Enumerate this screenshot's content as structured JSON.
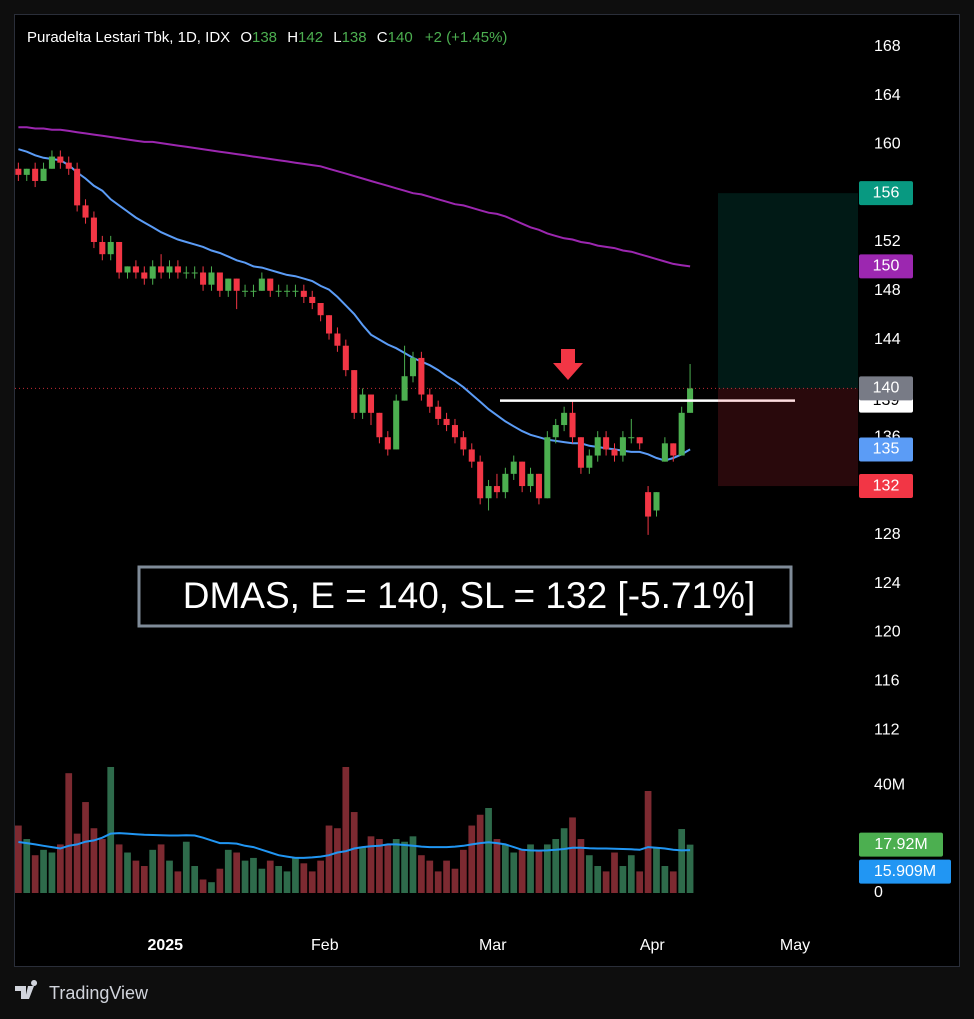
{
  "header": {
    "title": "Puradelta Lestari Tbk, 1D, IDX",
    "o_label": "O",
    "h_label": "H",
    "l_label": "L",
    "c_label": "C",
    "change": "+2 (+1.45%)"
  },
  "chart_data": {
    "type": "candlestick",
    "xlim": [
      -0.4,
      100
    ],
    "xticks": [
      {
        "value": 17.5,
        "label": "2025"
      },
      {
        "value": 36.5,
        "label": "Feb"
      },
      {
        "value": 56.5,
        "label": "Mar"
      },
      {
        "value": 75.5,
        "label": "Apr"
      },
      {
        "value": 92.5,
        "label": "May"
      }
    ],
    "ylim": [
      111.6,
      170.6
    ],
    "yticks": [
      112,
      116,
      120,
      124,
      128,
      132,
      136,
      140,
      144,
      148,
      152,
      156,
      160,
      164,
      168
    ],
    "up_color": "#4caf50",
    "down_color": "#f23645",
    "open": [
      158,
      157.5,
      158,
      157,
      158,
      159,
      158.5,
      158,
      155,
      154,
      152,
      151,
      152,
      149.5,
      150,
      149.5,
      149,
      150,
      149.5,
      150,
      149.5,
      149.5,
      149.5,
      148.5,
      149.5,
      148,
      149,
      148,
      148,
      148,
      149,
      148,
      148,
      148,
      148,
      147.5,
      147,
      146,
      144.5,
      143.5,
      141.5,
      138,
      139.5,
      138,
      136,
      135,
      139,
      141,
      142.5,
      139.5,
      138.5,
      137.5,
      137,
      136,
      135,
      134,
      131,
      132,
      131.5,
      133,
      134,
      132,
      133,
      131,
      136,
      137,
      138,
      136,
      133.5,
      134.5,
      136,
      135,
      134.5,
      136,
      136,
      131.5,
      130,
      134,
      135.5,
      134.5,
      138
    ],
    "high": [
      158.5,
      158,
      158.5,
      158.5,
      159.5,
      159.5,
      159,
      158.5,
      155.5,
      154.5,
      152.5,
      152.5,
      152,
      150,
      150.5,
      150,
      150.5,
      151,
      150.5,
      150.5,
      150,
      150,
      150,
      150,
      149.5,
      149,
      149,
      148.5,
      148.5,
      149.5,
      149,
      148.5,
      148.5,
      148.5,
      148.5,
      148,
      147,
      146,
      145,
      144,
      141.5,
      140,
      139.5,
      138,
      136.5,
      139.5,
      143.5,
      143,
      143,
      140,
      139,
      138,
      137.5,
      136.5,
      135.5,
      134.5,
      132.5,
      133,
      133.5,
      134.5,
      134,
      133.5,
      133,
      136.5,
      137.5,
      138.5,
      139,
      136,
      135,
      136.5,
      136.5,
      135.5,
      136.5,
      137.5,
      136,
      132,
      131.5,
      136,
      135.5,
      138.5,
      142
    ],
    "low": [
      157,
      157,
      156.5,
      157,
      158,
      158,
      157.5,
      154.5,
      153.5,
      151.5,
      150.5,
      150.5,
      149,
      149,
      149,
      148.5,
      148.5,
      149,
      149,
      149,
      149,
      149,
      148,
      148,
      147.5,
      147.5,
      146.5,
      147.5,
      147.5,
      148,
      147.5,
      147.5,
      147.5,
      147.5,
      147,
      146.5,
      145.5,
      144,
      143,
      141,
      137.5,
      137.5,
      137,
      135.5,
      134.5,
      135,
      139,
      140.5,
      139,
      138,
      137,
      136.5,
      135.5,
      134.5,
      133.5,
      130.5,
      130,
      131,
      131,
      132.5,
      131.5,
      131.5,
      130.5,
      131,
      135.5,
      136.5,
      135.5,
      133,
      133,
      134,
      134.5,
      134,
      134,
      135.5,
      135,
      128,
      129.5,
      134,
      134,
      134.5,
      138
    ],
    "close": [
      157.5,
      158,
      157,
      158,
      159,
      158.5,
      158,
      155,
      154,
      152,
      151,
      152,
      149.5,
      150,
      149.5,
      149,
      150,
      149.5,
      150,
      149.5,
      149.5,
      149.5,
      148.5,
      149.5,
      148,
      149,
      148,
      148,
      148,
      149,
      148,
      148,
      148,
      148,
      147.5,
      147,
      146,
      144.5,
      143.5,
      141.5,
      138,
      139.5,
      138,
      136,
      135,
      139,
      141,
      142.5,
      139.5,
      138.5,
      137.5,
      137,
      136,
      135,
      134,
      131,
      132,
      131.5,
      133,
      134,
      132,
      133,
      131,
      136,
      137,
      138,
      136,
      133.5,
      134.5,
      136,
      135,
      134.5,
      136,
      136,
      135.5,
      129.5,
      131.5,
      135.5,
      134.5,
      138,
      140
    ],
    "moving_averages": [
      {
        "color": "#9c27b0",
        "values": [
          161.4,
          161.4,
          161.3,
          161.3,
          161.2,
          161.2,
          161.1,
          161.0,
          160.9,
          160.8,
          160.7,
          160.6,
          160.5,
          160.4,
          160.3,
          160.2,
          160.2,
          160.1,
          160.0,
          159.9,
          159.8,
          159.7,
          159.6,
          159.5,
          159.4,
          159.3,
          159.2,
          159.1,
          159.0,
          158.9,
          158.8,
          158.7,
          158.6,
          158.5,
          158.4,
          158.3,
          158.2,
          158.0,
          157.8,
          157.6,
          157.4,
          157.2,
          157.0,
          156.8,
          156.6,
          156.4,
          156.2,
          156.0,
          155.9,
          155.7,
          155.5,
          155.3,
          155.1,
          155.0,
          154.8,
          154.6,
          154.4,
          154.3,
          154.1,
          153.8,
          153.5,
          153.2,
          153.0,
          152.7,
          152.5,
          152.3,
          152.2,
          152.0,
          151.9,
          151.7,
          151.6,
          151.5,
          151.3,
          151.2,
          151.0,
          150.8,
          150.6,
          150.4,
          150.2,
          150.1,
          150
        ]
      },
      {
        "color": "#5b9cf6",
        "values": [
          159.6,
          159.4,
          159.1,
          158.9,
          158.8,
          158.7,
          158.3,
          157.7,
          157.2,
          156.6,
          156.2,
          155.5,
          155.0,
          154.5,
          154.0,
          153.6,
          153.2,
          152.8,
          152.5,
          152.2,
          152.0,
          151.8,
          151.6,
          151.3,
          151.1,
          150.8,
          150.5,
          150.3,
          150.0,
          149.9,
          149.7,
          149.5,
          149.3,
          149.2,
          149.0,
          148.8,
          148.4,
          148.1,
          147.5,
          146.8,
          146.1,
          145.2,
          144.4,
          144.0,
          143.6,
          143.3,
          142.9,
          142.5,
          142.2,
          141.9,
          141.5,
          141.0,
          140.6,
          140.1,
          139.5,
          138.9,
          138.3,
          137.8,
          137.3,
          136.9,
          136.5,
          136.2,
          136.0,
          135.8,
          135.7,
          135.6,
          135.5,
          135.5,
          135.3,
          135.2,
          135.1,
          135.0,
          134.9,
          134.8,
          134.8,
          134.6,
          134.3,
          134.1,
          134.3,
          134.6,
          135
        ]
      }
    ],
    "volume": {
      "ylim": [
        0,
        56.7
      ],
      "yticks": [
        {
          "value": 40,
          "label": "40M"
        },
        0
      ],
      "up_color": "#2e6b4b",
      "down_color": "#7d2a31",
      "values": [
        25,
        20,
        14,
        16,
        15,
        18,
        44.4,
        22,
        33.7,
        24,
        20,
        46.7,
        18,
        15,
        12,
        10,
        16,
        18,
        12,
        8,
        19,
        10,
        5,
        4,
        9,
        16,
        15,
        12,
        13,
        9,
        12,
        10,
        8,
        13,
        11,
        8,
        12,
        25,
        24,
        46.7,
        30,
        17,
        21,
        20,
        18,
        20,
        19,
        21,
        14,
        12,
        8,
        12,
        9,
        16,
        25,
        29,
        31.5,
        20,
        18,
        15,
        16,
        18,
        16,
        18,
        20,
        24,
        28,
        20,
        14,
        10,
        8,
        15,
        10,
        14,
        8,
        37.8,
        17,
        10,
        8,
        23.7,
        17.92
      ],
      "last_label": "17.92M",
      "last_label_color": "#4caf50",
      "ma": {
        "color": "#2196f3",
        "last_label": "15.909M",
        "values": [
          18.9,
          18.5,
          18,
          17.5,
          17,
          16.5,
          17.5,
          18,
          19,
          19.5,
          20.5,
          22,
          22.2,
          22,
          21.8,
          21.6,
          21.5,
          21.4,
          21.3,
          21.3,
          21.4,
          21.3,
          20.5,
          19.5,
          18.5,
          18.5,
          18.3,
          17.5,
          17,
          16,
          15,
          14,
          13.5,
          13,
          13,
          13.2,
          13.5,
          14,
          15,
          15.5,
          16.5,
          17,
          17.3,
          17.5,
          18,
          18,
          17.8,
          17.5,
          17.2,
          17,
          17,
          17,
          17.2,
          17.5,
          18,
          18.5,
          18.8,
          18.5,
          18,
          17,
          16,
          15.8,
          15.7,
          15.8,
          16,
          16.3,
          16.8,
          16.8,
          16.6,
          16.5,
          16.5,
          16.4,
          16.3,
          16.2,
          16,
          17,
          16.8,
          16.5,
          16,
          15.8,
          15.909
        ]
      }
    },
    "position": {
      "entry": 140,
      "target": 156,
      "stop": 132,
      "target_color": "#089981",
      "stop_color": "#f23645"
    },
    "hline": {
      "value": 139,
      "color": "#ffffff"
    },
    "annotation": "DMAS, E = 140, SL = 132 [-5.71%]"
  },
  "footer": {
    "brand": "TradingView"
  }
}
